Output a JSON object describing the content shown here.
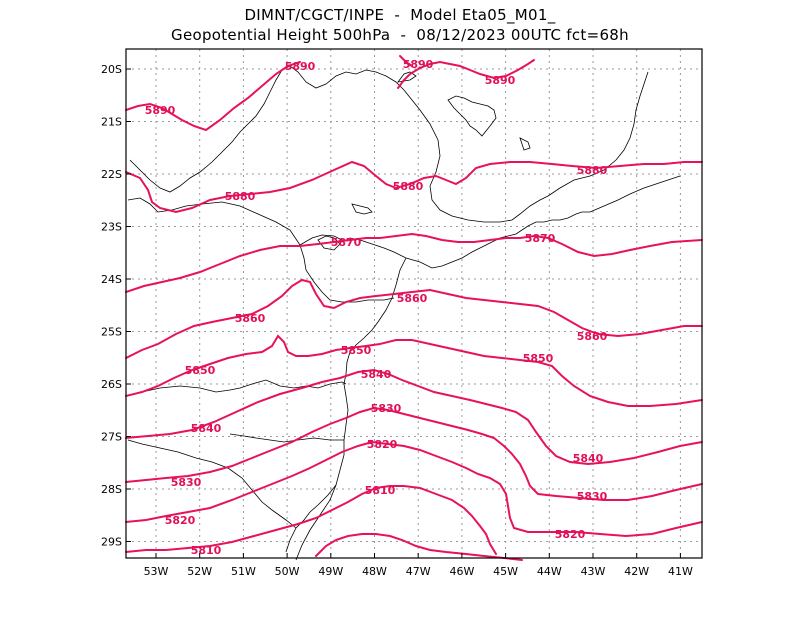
{
  "header": {
    "line1": "DIMNT/CGCT/INPE  -  Model Eta05_M01_",
    "line2": "Geopotential Height 500hPa  -  08/12/2023 00UTC fct=68h"
  },
  "colors": {
    "contour": "#e8125a",
    "label": "#e0105a",
    "coast": "#000000",
    "grid": "#999999"
  },
  "map": {
    "lon_ticks": [
      "53W",
      "52W",
      "51W",
      "50W",
      "49W",
      "48W",
      "47W",
      "46W",
      "45W",
      "44W",
      "43W",
      "42W",
      "41W"
    ],
    "lat_ticks": [
      "20S",
      "21S",
      "22S",
      "23S",
      "24S",
      "25S",
      "26S",
      "27S",
      "28S",
      "29S"
    ]
  },
  "contour_labels": [
    {
      "text": "5890"
    },
    {
      "text": "5890"
    },
    {
      "text": "5890"
    },
    {
      "text": "5890"
    },
    {
      "text": "5880"
    },
    {
      "text": "5880"
    },
    {
      "text": "5880"
    },
    {
      "text": "5870"
    },
    {
      "text": "5870"
    },
    {
      "text": "5860"
    },
    {
      "text": "5860"
    },
    {
      "text": "5860"
    },
    {
      "text": "5850"
    },
    {
      "text": "5850"
    },
    {
      "text": "5850"
    },
    {
      "text": "5840"
    },
    {
      "text": "5840"
    },
    {
      "text": "5840"
    },
    {
      "text": "5830"
    },
    {
      "text": "5830"
    },
    {
      "text": "5830"
    },
    {
      "text": "5820"
    },
    {
      "text": "5820"
    },
    {
      "text": "5820"
    },
    {
      "text": "5810"
    },
    {
      "text": "5810"
    }
  ]
}
